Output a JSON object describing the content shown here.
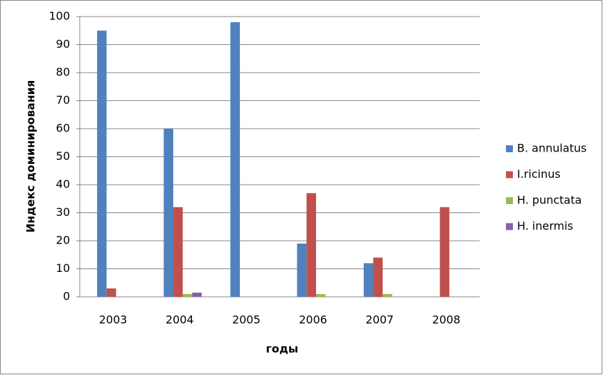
{
  "chart_data": {
    "type": "bar",
    "x_label": "годы",
    "y_label": "Индекс доминирования",
    "categories": [
      "2003",
      "2004",
      "2005",
      "2006",
      "2007",
      "2008"
    ],
    "series": [
      {
        "name": "B. annulatus",
        "color": "#4f81bd",
        "values": [
          95,
          60,
          98,
          19,
          12,
          0
        ]
      },
      {
        "name": "I.ricinus",
        "color": "#c0504d",
        "values": [
          3,
          32,
          0,
          37,
          14,
          32
        ]
      },
      {
        "name": "H. punctata",
        "color": "#9bbb59",
        "values": [
          0,
          1,
          0,
          1,
          1,
          0
        ]
      },
      {
        "name": "H. inermis",
        "color": "#8064a2",
        "values": [
          0,
          1.5,
          0,
          0,
          0,
          0
        ]
      }
    ],
    "ylim": [
      0,
      100
    ],
    "yticks": [
      0,
      10,
      20,
      30,
      40,
      50,
      60,
      70,
      80,
      90,
      100
    ],
    "grid": true,
    "legend": "right"
  }
}
